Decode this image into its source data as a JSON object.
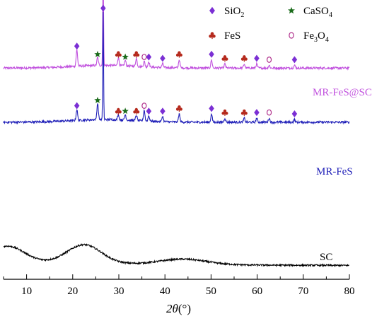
{
  "chart_data": {
    "type": "line",
    "title": "",
    "xlabel_italic": "2θ",
    "xlabel_unit": "(°)",
    "ylabel": "",
    "xlim": [
      5,
      80
    ],
    "x_ticks": [
      10,
      20,
      30,
      40,
      50,
      60,
      70,
      80
    ],
    "x_tick_labels": [
      "10",
      "20",
      "30",
      "40",
      "50",
      "60",
      "70",
      "80"
    ],
    "y_ticks_shown": false,
    "legend": {
      "placement": "top-right",
      "entries": [
        {
          "key": "sio2",
          "text": "SiO",
          "sub": "2",
          "after": "",
          "marker": "diamond",
          "color": "#7b2fd4"
        },
        {
          "key": "caso4",
          "text": "CaSO",
          "sub": "4",
          "after": "",
          "marker": "star",
          "color": "#1a6b1a"
        },
        {
          "key": "fes",
          "text": "FeS",
          "sub": "",
          "after": "",
          "marker": "club",
          "color": "#b5291c"
        },
        {
          "key": "fe3o4",
          "text": "Fe",
          "sub": "3",
          "after": "O",
          "sub2": "4",
          "marker": "circle",
          "color": "#b0308c"
        }
      ]
    },
    "series": [
      {
        "name": "MR-FeS@SC",
        "color": "#c152de",
        "baseline": 0.78,
        "peaks": [
          {
            "x": 20.9,
            "h": 0.06
          },
          {
            "x": 25.4,
            "h": 0.03
          },
          {
            "x": 26.6,
            "h": 0.36
          },
          {
            "x": 29.9,
            "h": 0.03
          },
          {
            "x": 31.4,
            "h": 0.02
          },
          {
            "x": 33.8,
            "h": 0.03
          },
          {
            "x": 35.5,
            "h": 0.02
          },
          {
            "x": 36.5,
            "h": 0.02
          },
          {
            "x": 39.5,
            "h": 0.015
          },
          {
            "x": 43.1,
            "h": 0.03
          },
          {
            "x": 50.1,
            "h": 0.03
          },
          {
            "x": 53.0,
            "h": 0.015
          },
          {
            "x": 57.2,
            "h": 0.015
          },
          {
            "x": 59.9,
            "h": 0.015
          },
          {
            "x": 62.6,
            "h": 0.01
          },
          {
            "x": 68.1,
            "h": 0.01
          }
        ]
      },
      {
        "name": "MR-FeS",
        "color": "#1f1fb8",
        "baseline": 0.58,
        "peaks": [
          {
            "x": 20.9,
            "h": 0.04
          },
          {
            "x": 25.4,
            "h": 0.06
          },
          {
            "x": 26.6,
            "h": 0.4
          },
          {
            "x": 29.9,
            "h": 0.02
          },
          {
            "x": 31.4,
            "h": 0.02
          },
          {
            "x": 33.8,
            "h": 0.02
          },
          {
            "x": 35.5,
            "h": 0.04
          },
          {
            "x": 36.5,
            "h": 0.02
          },
          {
            "x": 39.5,
            "h": 0.02
          },
          {
            "x": 43.1,
            "h": 0.03
          },
          {
            "x": 50.1,
            "h": 0.03
          },
          {
            "x": 53.0,
            "h": 0.015
          },
          {
            "x": 57.2,
            "h": 0.015
          },
          {
            "x": 59.9,
            "h": 0.015
          },
          {
            "x": 62.6,
            "h": 0.015
          },
          {
            "x": 68.1,
            "h": 0.01
          }
        ]
      },
      {
        "name": "SC",
        "color": "#000000",
        "curve": "amorphous"
      }
    ],
    "peak_markers": [
      {
        "series": "MR-FeS@SC",
        "phase": "sio2",
        "x": 20.9
      },
      {
        "series": "MR-FeS@SC",
        "phase": "caso4",
        "x": 25.4
      },
      {
        "series": "MR-FeS@SC",
        "phase": "sio2",
        "x": 26.6
      },
      {
        "series": "MR-FeS@SC",
        "phase": "fes",
        "x": 29.9
      },
      {
        "series": "MR-FeS@SC",
        "phase": "caso4",
        "x": 31.4
      },
      {
        "series": "MR-FeS@SC",
        "phase": "fes",
        "x": 33.8
      },
      {
        "series": "MR-FeS@SC",
        "phase": "fe3o4",
        "x": 35.5
      },
      {
        "series": "MR-FeS@SC",
        "phase": "sio2",
        "x": 36.5
      },
      {
        "series": "MR-FeS@SC",
        "phase": "sio2",
        "x": 39.5
      },
      {
        "series": "MR-FeS@SC",
        "phase": "fes",
        "x": 43.1
      },
      {
        "series": "MR-FeS@SC",
        "phase": "sio2",
        "x": 50.1
      },
      {
        "series": "MR-FeS@SC",
        "phase": "fes",
        "x": 53.0
      },
      {
        "series": "MR-FeS@SC",
        "phase": "fes",
        "x": 57.2
      },
      {
        "series": "MR-FeS@SC",
        "phase": "sio2",
        "x": 59.9
      },
      {
        "series": "MR-FeS@SC",
        "phase": "fe3o4",
        "x": 62.6
      },
      {
        "series": "MR-FeS@SC",
        "phase": "sio2",
        "x": 68.1
      },
      {
        "series": "MR-FeS",
        "phase": "sio2",
        "x": 20.9
      },
      {
        "series": "MR-FeS",
        "phase": "caso4",
        "x": 25.4
      },
      {
        "series": "MR-FeS",
        "phase": "sio2",
        "x": 26.6
      },
      {
        "series": "MR-FeS",
        "phase": "fes",
        "x": 29.9
      },
      {
        "series": "MR-FeS",
        "phase": "caso4",
        "x": 31.4
      },
      {
        "series": "MR-FeS",
        "phase": "fes",
        "x": 33.8
      },
      {
        "series": "MR-FeS",
        "phase": "fe3o4",
        "x": 35.5
      },
      {
        "series": "MR-FeS",
        "phase": "sio2",
        "x": 36.5
      },
      {
        "series": "MR-FeS",
        "phase": "sio2",
        "x": 39.5
      },
      {
        "series": "MR-FeS",
        "phase": "fes",
        "x": 43.1
      },
      {
        "series": "MR-FeS",
        "phase": "sio2",
        "x": 50.1
      },
      {
        "series": "MR-FeS",
        "phase": "fes",
        "x": 53.0
      },
      {
        "series": "MR-FeS",
        "phase": "fes",
        "x": 57.2
      },
      {
        "series": "MR-FeS",
        "phase": "sio2",
        "x": 59.9
      },
      {
        "series": "MR-FeS",
        "phase": "fe3o4",
        "x": 62.6
      },
      {
        "series": "MR-FeS",
        "phase": "sio2",
        "x": 68.1
      }
    ]
  }
}
